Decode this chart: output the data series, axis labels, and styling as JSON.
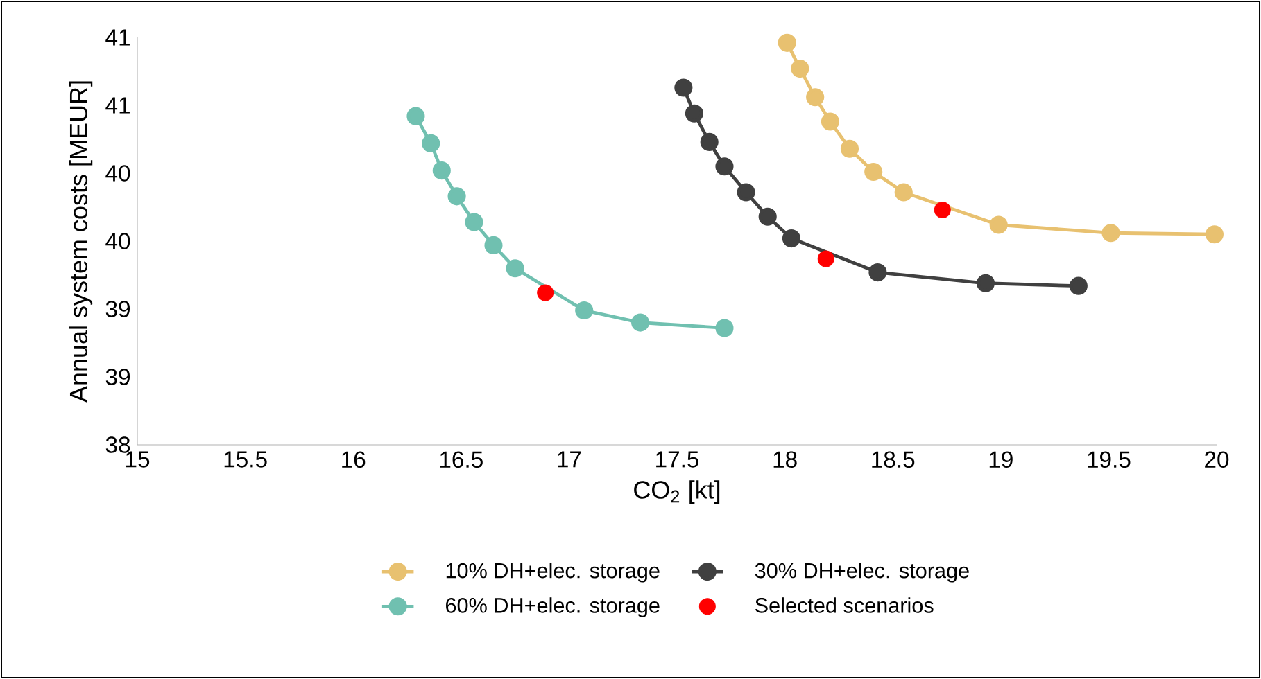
{
  "chart_data": {
    "type": "line",
    "xlabel": "CO$_{2}$ [kt]",
    "ylabel": "Annual system costs [MEUR]",
    "xlim": [
      15,
      20
    ],
    "xticks": [
      15,
      15.5,
      16,
      16.5,
      17,
      17.5,
      18,
      18.5,
      19,
      19.5,
      20
    ],
    "ylim": [
      38,
      41
    ],
    "yticks": [
      38,
      {
        "value": 38.5,
        "label": "39"
      },
      39,
      {
        "value": 39.5,
        "label": "40"
      },
      40,
      {
        "value": 40.5,
        "label": "41"
      },
      41
    ],
    "legend": "bottom",
    "marker": "circle",
    "line_style": "solid",
    "grid": false,
    "series": [
      {
        "name": "10% DH+elec. storage",
        "color": "#e8c170",
        "x": [
          18.01,
          18.07,
          18.14,
          18.21,
          18.3,
          18.41,
          18.55,
          18.99,
          19.51,
          19.99
        ],
        "values": [
          40.96,
          40.77,
          40.56,
          40.38,
          40.18,
          40.01,
          39.86,
          39.62,
          39.56,
          39.55
        ]
      },
      {
        "name": "30% DH+elec. storage",
        "color": "#404040",
        "x": [
          17.53,
          17.58,
          17.65,
          17.72,
          17.82,
          17.92,
          18.03,
          18.43,
          18.93,
          19.36
        ],
        "values": [
          40.63,
          40.44,
          40.23,
          40.05,
          39.86,
          39.68,
          39.52,
          39.27,
          39.19,
          39.17
        ]
      },
      {
        "name": "60% DH+elec. storage",
        "color": "#70c0b0",
        "x": [
          16.29,
          16.36,
          16.41,
          16.48,
          16.56,
          16.65,
          16.75,
          17.07,
          17.33,
          17.72
        ],
        "values": [
          40.42,
          40.22,
          40.02,
          39.83,
          39.64,
          39.47,
          39.3,
          38.99,
          38.9,
          38.86
        ]
      },
      {
        "name": "Selected scenarios",
        "type": "scatter",
        "color": "#ff0000",
        "x": [
          18.73,
          18.19,
          16.89
        ],
        "values": [
          39.73,
          39.37,
          39.12
        ]
      }
    ]
  }
}
